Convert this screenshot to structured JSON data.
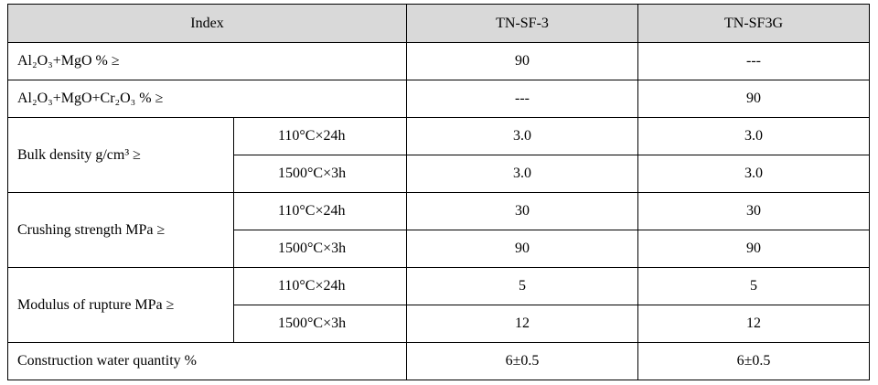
{
  "table": {
    "header": {
      "index": "Index",
      "col1": "TN-SF-3",
      "col2": "TN-SF3G"
    },
    "rows": [
      {
        "label": "Al₂O₃+MgO % ≥",
        "values": [
          "90",
          "---"
        ]
      },
      {
        "label": "Al₂O₃+MgO+Cr₂O₃ % ≥",
        "values": [
          "---",
          "90"
        ]
      },
      {
        "label": "Bulk density g/cm³ ≥",
        "conditions": [
          {
            "condition": "110°C×24h",
            "values": [
              "3.0",
              "3.0"
            ]
          },
          {
            "condition": "1500°C×3h",
            "values": [
              "3.0",
              "3.0"
            ]
          }
        ]
      },
      {
        "label": "Crushing strength MPa ≥",
        "conditions": [
          {
            "condition": "110°C×24h",
            "values": [
              "30",
              "30"
            ]
          },
          {
            "condition": "1500°C×3h",
            "values": [
              "90",
              "90"
            ]
          }
        ]
      },
      {
        "label": "Modulus of rupture MPa ≥",
        "conditions": [
          {
            "condition": "110°C×24h",
            "values": [
              "5",
              "5"
            ]
          },
          {
            "condition": "1500°C×3h",
            "values": [
              "12",
              "12"
            ]
          }
        ]
      },
      {
        "label": "Construction water quantity %",
        "values": [
          "6±0.5",
          "6±0.5"
        ]
      }
    ]
  }
}
